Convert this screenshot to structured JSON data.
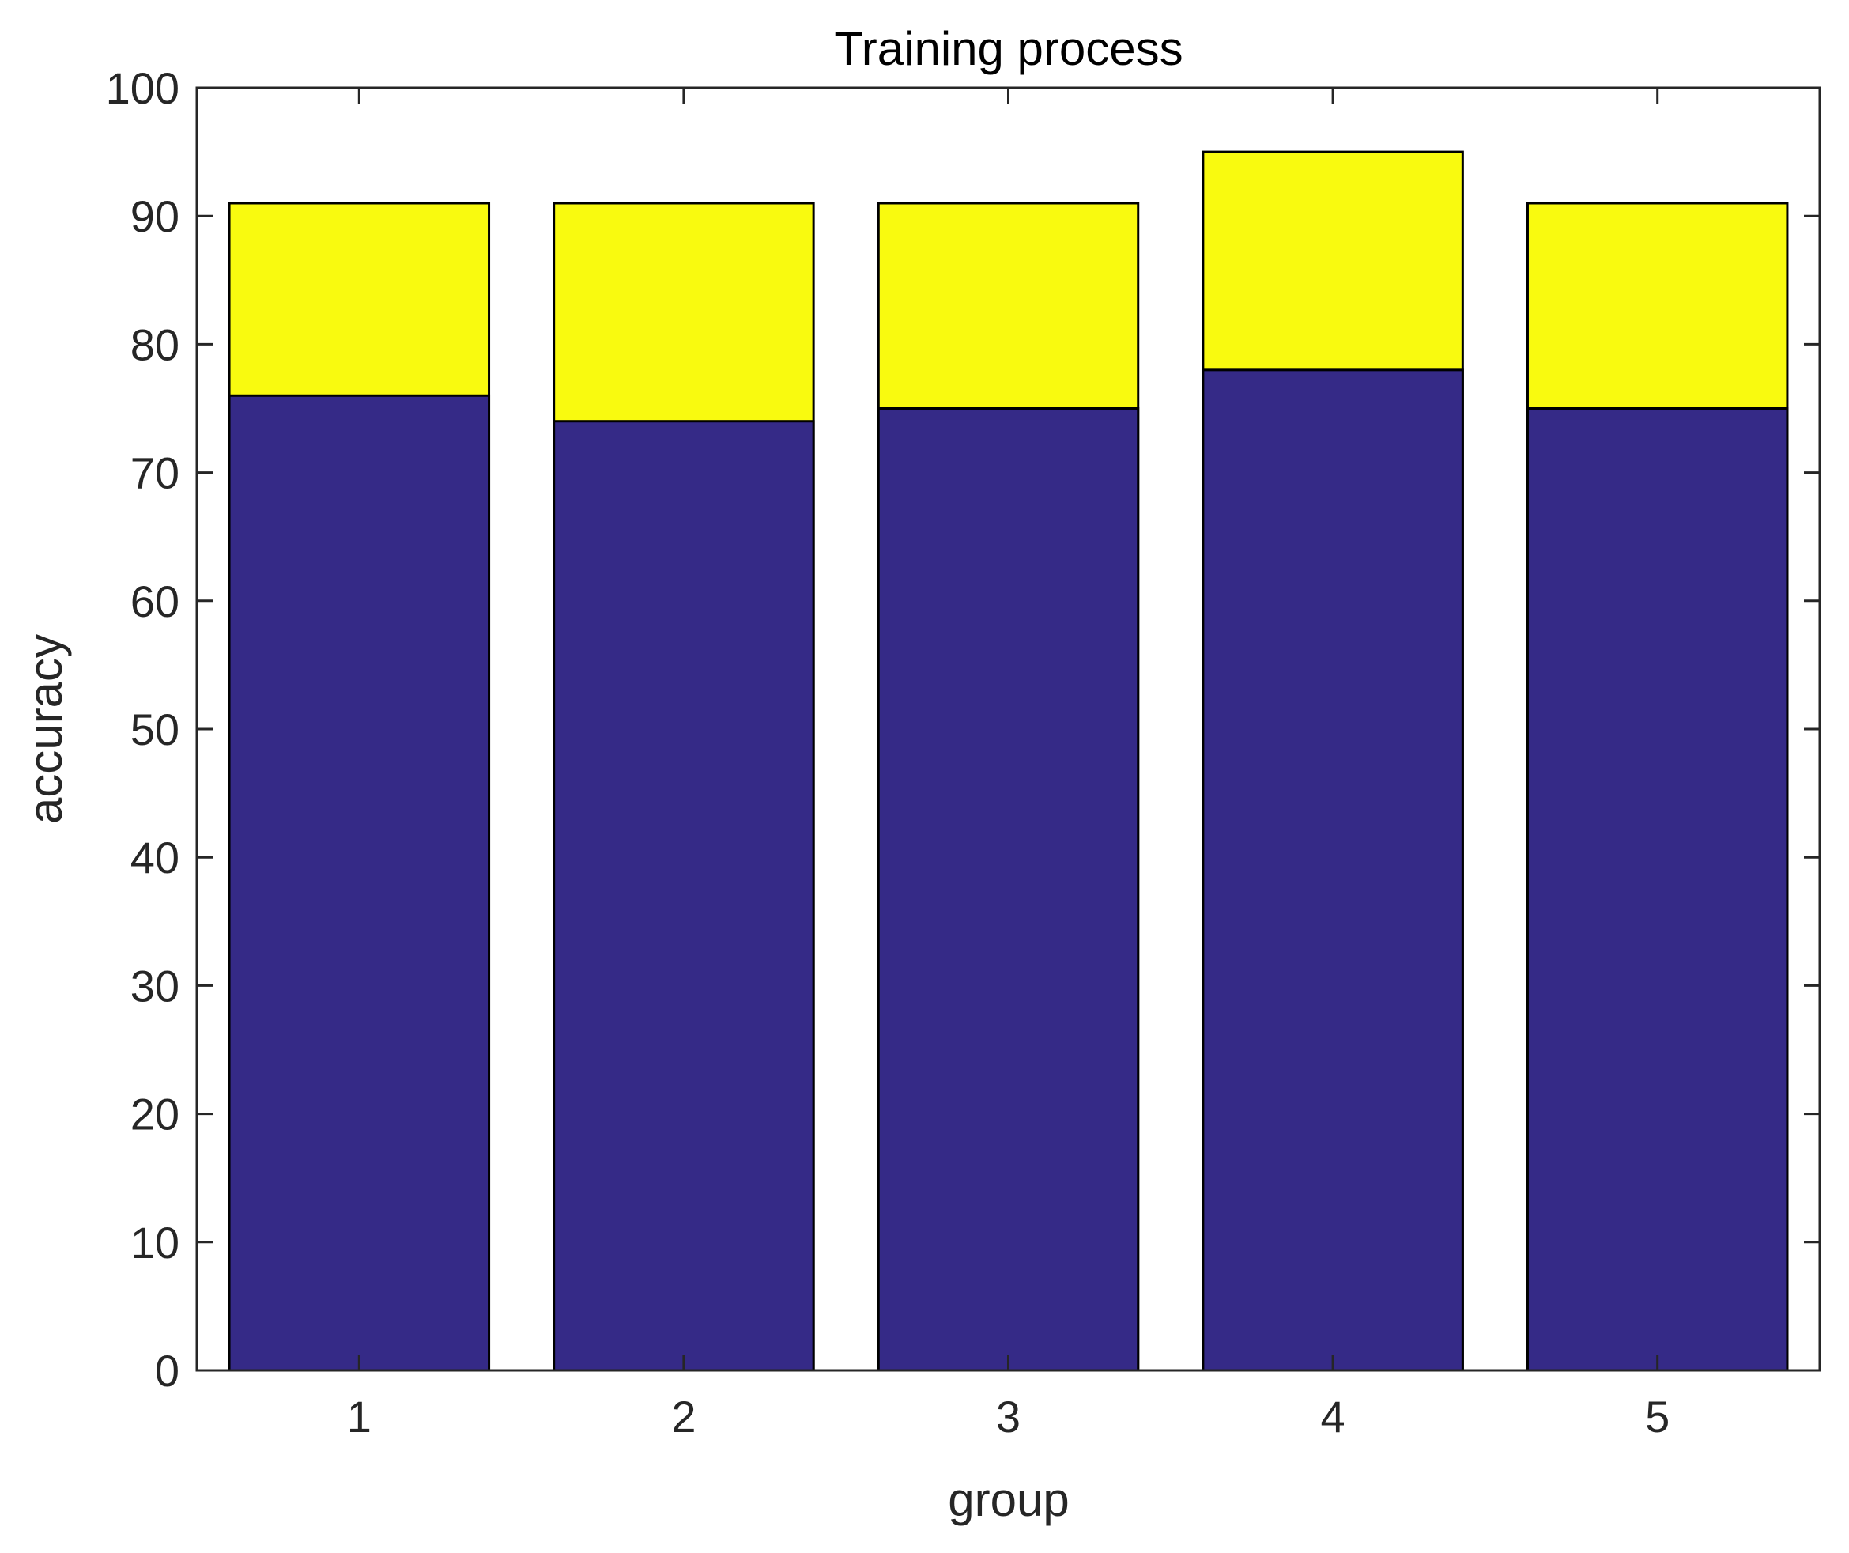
{
  "chart_data": {
    "type": "bar",
    "stacked": false,
    "overlaid": true,
    "title": "Training process",
    "xlabel": "group",
    "ylabel": "accuracy",
    "categories": [
      "1",
      "2",
      "3",
      "4",
      "5"
    ],
    "ylim": [
      0,
      100
    ],
    "yticks": [
      0,
      10,
      20,
      30,
      40,
      50,
      60,
      70,
      80,
      90,
      100
    ],
    "grid": false,
    "legend": "none",
    "series": [
      {
        "values": [
          91,
          91,
          91,
          95,
          91
        ],
        "color": "#F9FA0F"
      },
      {
        "values": [
          76,
          74,
          75,
          78,
          75
        ],
        "color": "#352A87"
      }
    ]
  }
}
